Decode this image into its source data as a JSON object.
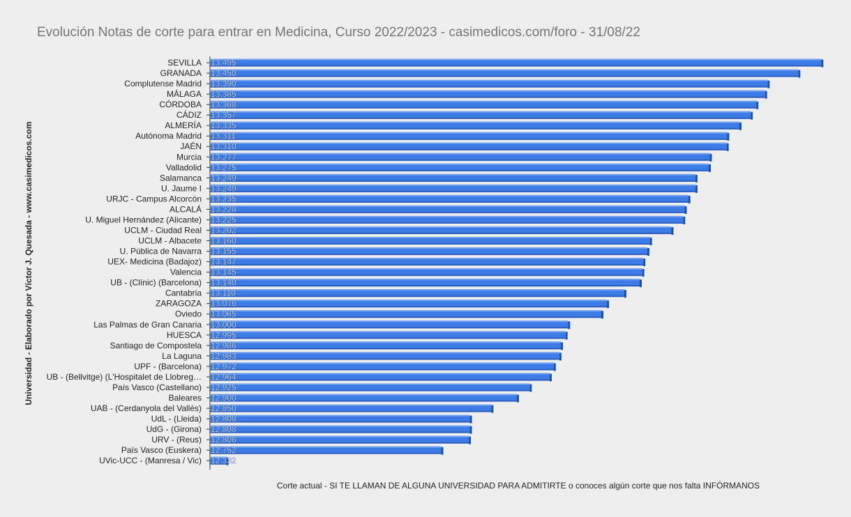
{
  "chart_data": {
    "type": "bar",
    "orientation": "horizontal",
    "title": "Evolución Notas de corte para entrar en Medicina, Curso 2022/2023 - casimedicos.com/foro - 31/08/22",
    "ylabel": "Universidad  - Elaborado por Víctor J. Quesada - www.casimedicos.com",
    "xlabel": "Corte actual - SI TE LLAMAN DE ALGUNA UNIVERSIDAD PARA ADMITIRTE o conoces algún corte que nos falta INFÓRMANOS",
    "xlim": [
      12.3,
      13.5
    ],
    "grid": false,
    "legend": "none",
    "bar_color": "#3d7be6",
    "categories": [
      "SEVILLA",
      "GRANADA",
      "Complutense Madrid",
      "MÁLAGA",
      "CÓRDOBA",
      "CÁDIZ",
      "ALMERÍA",
      "Autónoma Madrid",
      "JAÉN",
      "Murcia",
      "Valladolid",
      "Salamanca",
      "U. Jaume I",
      "URJC - Campus Alcorcón",
      "ALCALÁ",
      "U. Miguel Hernández (Alicante)",
      "UCLM - Ciudad Real",
      "UCLM - Albacete",
      "U. Pública de Navarra",
      "UEX- Medicina (Badajoz)",
      "Valencia",
      "UB - (Clínic) (Barcelona)",
      "Cantabria",
      "ZARAGOZA",
      "Oviedo",
      "Las Palmas de Gran Canaria",
      "HUESCA",
      "Santiago de Compostela",
      "La Laguna",
      "UPF - (Barcelona)",
      "UB - (Bellvitge) (L'Hospitalet de Llobreg…",
      "País Vasco (Castellano)",
      "Baleares",
      "UAB - (Cerdanyola del Vallès)",
      "UdL - (Lleida)",
      "UdG - (Girona)",
      "URV - (Reus)",
      "País Vasco (Euskera)",
      "UVic-UCC - (Manresa / Vic)"
    ],
    "values": [
      13.495,
      13.45,
      13.39,
      13.385,
      13.368,
      13.357,
      13.335,
      13.311,
      13.31,
      13.277,
      13.275,
      13.249,
      13.249,
      13.235,
      13.228,
      13.225,
      13.202,
      13.16,
      13.155,
      13.147,
      13.145,
      13.14,
      13.11,
      13.076,
      13.065,
      13.0,
      12.995,
      12.986,
      12.983,
      12.972,
      12.964,
      12.925,
      12.9,
      12.85,
      12.808,
      12.808,
      12.806,
      12.752,
      12.332
    ],
    "data_labels": [
      "13,495",
      "13,450",
      "13,390",
      "13,385",
      "13,368",
      "13,357",
      "13,335",
      "13,311",
      "13,310",
      "13,277",
      "13,275",
      "13,249",
      "13,249",
      "13,235",
      "13,228",
      "13,225",
      "13,202",
      "13,160",
      "13,155",
      "13,147",
      "13,145",
      "13,140",
      "13,110",
      "13,076",
      "13,065",
      "13,000",
      "12,995",
      "12,986",
      "12,983",
      "12,972",
      "12,964",
      "12,925",
      "12,900",
      "12,850",
      "12,808",
      "12,808",
      "12,806",
      "12,752",
      "12,332"
    ]
  }
}
